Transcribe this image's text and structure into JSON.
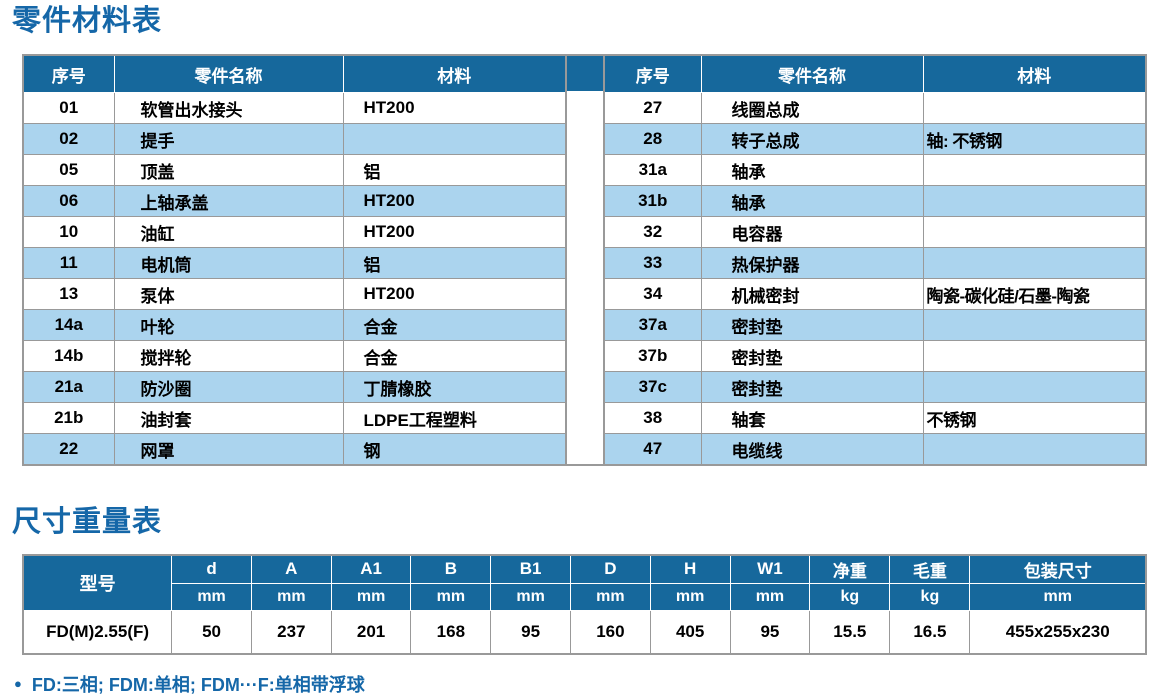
{
  "page": {
    "parts_section_title": "零件材料表",
    "dims_section_title": "尺寸重量表",
    "footnote": "FD:三相; FDM:单相; FDM···F:单相带浮球",
    "bullet": "●",
    "colors": {
      "header_blue": "#16689C",
      "row_light_blue": "#ABD4EE",
      "title_blue": "#1567A8",
      "border_gray": "#999999"
    }
  },
  "parts_table": {
    "headers": [
      "序号",
      "零件名称",
      "材料"
    ],
    "left_rows": [
      {
        "no": "01",
        "name": "软管出水接头",
        "material": "HT200"
      },
      {
        "no": "02",
        "name": "提手",
        "material": ""
      },
      {
        "no": "05",
        "name": "顶盖",
        "material": "铝"
      },
      {
        "no": "06",
        "name": "上轴承盖",
        "material": "HT200"
      },
      {
        "no": "10",
        "name": "油缸",
        "material": "HT200"
      },
      {
        "no": "11",
        "name": "电机筒",
        "material": "铝"
      },
      {
        "no": "13",
        "name": "泵体",
        "material": "HT200"
      },
      {
        "no": "14a",
        "name": "叶轮",
        "material": "合金"
      },
      {
        "no": "14b",
        "name": "搅拌轮",
        "material": "合金"
      },
      {
        "no": "21a",
        "name": "防沙圈",
        "material": "丁腈橡胶"
      },
      {
        "no": "21b",
        "name": "油封套",
        "material": "LDPE工程塑料"
      },
      {
        "no": "22",
        "name": "网罩",
        "material": "钢"
      }
    ],
    "right_rows": [
      {
        "no": "27",
        "name": "线圈总成",
        "material": ""
      },
      {
        "no": "28",
        "name": "转子总成",
        "material": "轴: 不锈钢"
      },
      {
        "no": "31a",
        "name": "轴承",
        "material": ""
      },
      {
        "no": "31b",
        "name": "轴承",
        "material": ""
      },
      {
        "no": "32",
        "name": "电容器",
        "material": ""
      },
      {
        "no": "33",
        "name": "热保护器",
        "material": ""
      },
      {
        "no": "34",
        "name": "机械密封",
        "material": "陶瓷-碳化硅/石墨-陶瓷"
      },
      {
        "no": "37a",
        "name": "密封垫",
        "material": ""
      },
      {
        "no": "37b",
        "name": "密封垫",
        "material": ""
      },
      {
        "no": "37c",
        "name": "密封垫",
        "material": ""
      },
      {
        "no": "38",
        "name": "轴套",
        "material": "不锈钢"
      },
      {
        "no": "47",
        "name": "电缆线",
        "material": ""
      }
    ]
  },
  "dims_table": {
    "model_header": "型号",
    "columns": [
      {
        "label": "d",
        "unit": "mm"
      },
      {
        "label": "A",
        "unit": "mm"
      },
      {
        "label": "A1",
        "unit": "mm"
      },
      {
        "label": "B",
        "unit": "mm"
      },
      {
        "label": "B1",
        "unit": "mm"
      },
      {
        "label": "D",
        "unit": "mm"
      },
      {
        "label": "H",
        "unit": "mm"
      },
      {
        "label": "W1",
        "unit": "mm"
      },
      {
        "label": "净重",
        "unit": "kg"
      },
      {
        "label": "毛重",
        "unit": "kg"
      },
      {
        "label": "包装尺寸",
        "unit": "mm"
      }
    ],
    "rows": [
      {
        "model": "FD(M)2.55(F)",
        "values": [
          "50",
          "237",
          "201",
          "168",
          "95",
          "160",
          "405",
          "95",
          "15.5",
          "16.5",
          "455x255x230"
        ]
      }
    ]
  }
}
